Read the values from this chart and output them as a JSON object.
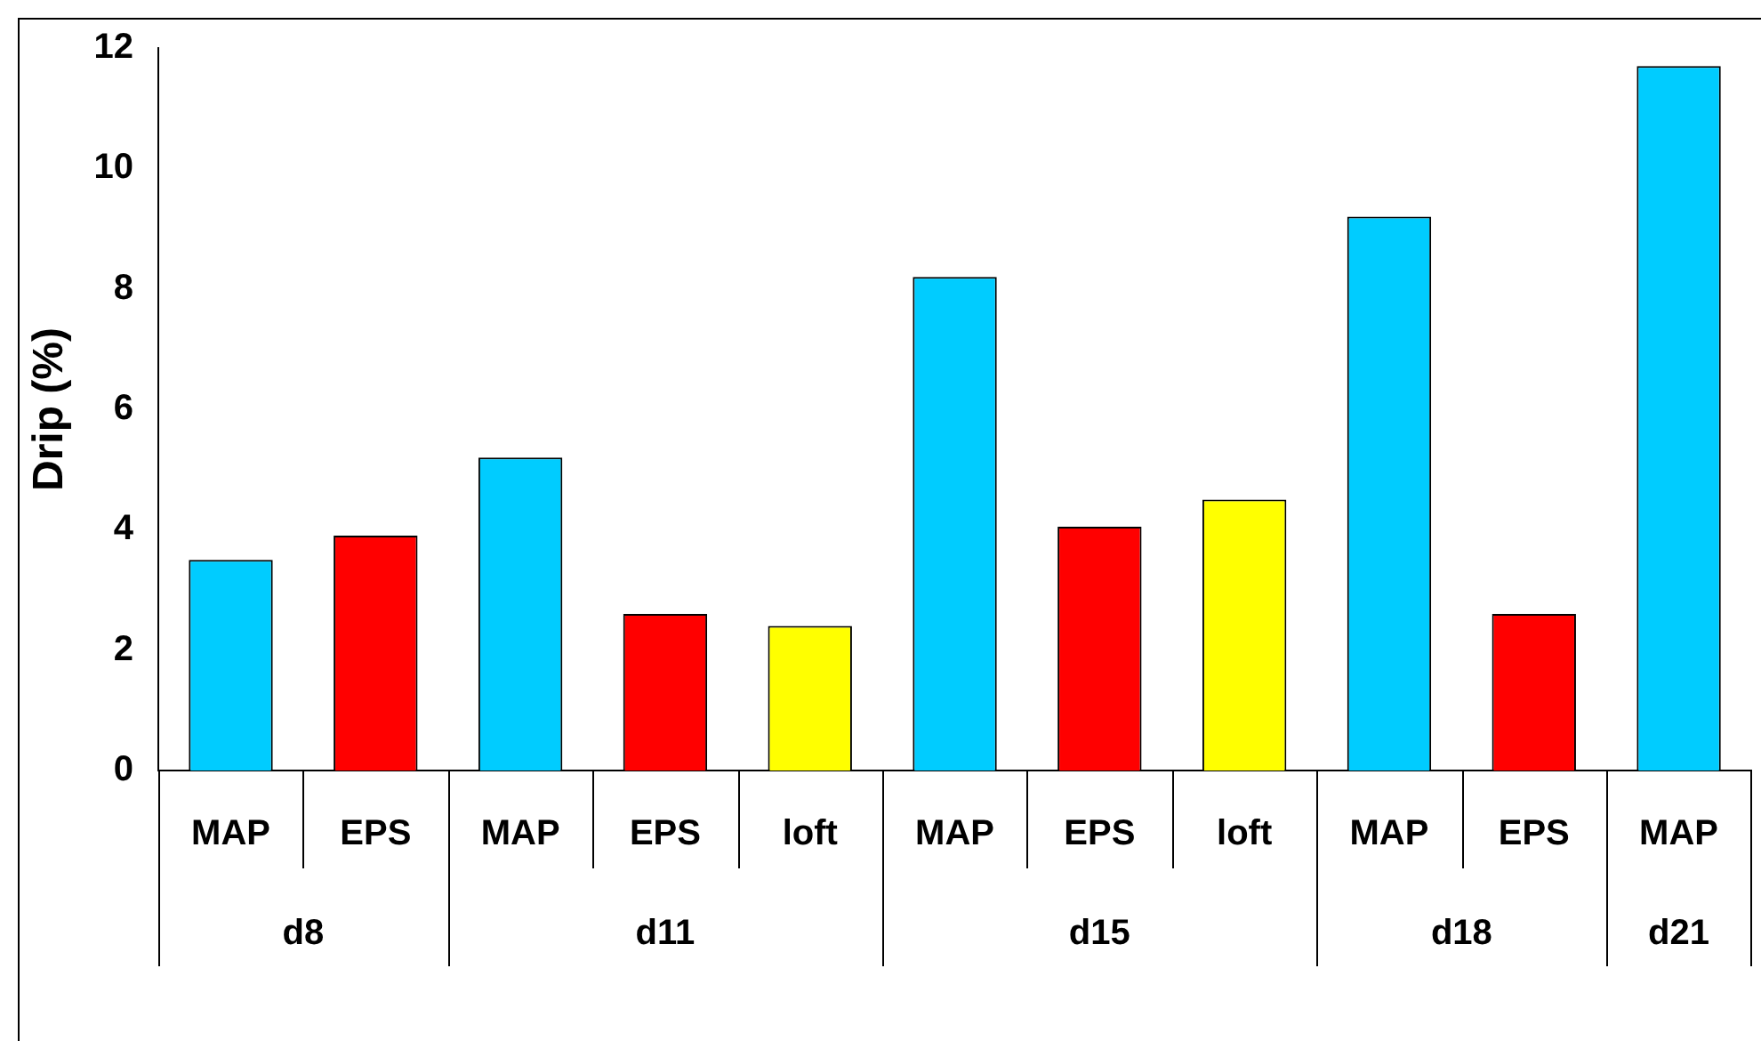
{
  "chart_data": {
    "type": "bar",
    "ylabel": "Drip (%)",
    "categories": [
      "MAP",
      "EPS",
      "MAP",
      "EPS",
      "loft",
      "MAP",
      "EPS",
      "loft",
      "MAP",
      "EPS",
      "MAP"
    ],
    "values": [
      3.5,
      3.9,
      5.2,
      2.6,
      2.4,
      8.2,
      4.05,
      4.5,
      9.2,
      2.6,
      11.7
    ],
    "colors": [
      "#00ccff",
      "#ff0000",
      "#00ccff",
      "#ff0000",
      "#ffff00",
      "#00ccff",
      "#ff0000",
      "#ffff00",
      "#00ccff",
      "#ff0000",
      "#00ccff"
    ],
    "annotations": [
      "d8",
      "d11",
      "d15",
      "d18",
      "d21"
    ],
    "ylim": [
      0,
      12
    ],
    "yticks": [
      0,
      2,
      4,
      6,
      8,
      10,
      12
    ],
    "grid": false,
    "legend": false
  }
}
